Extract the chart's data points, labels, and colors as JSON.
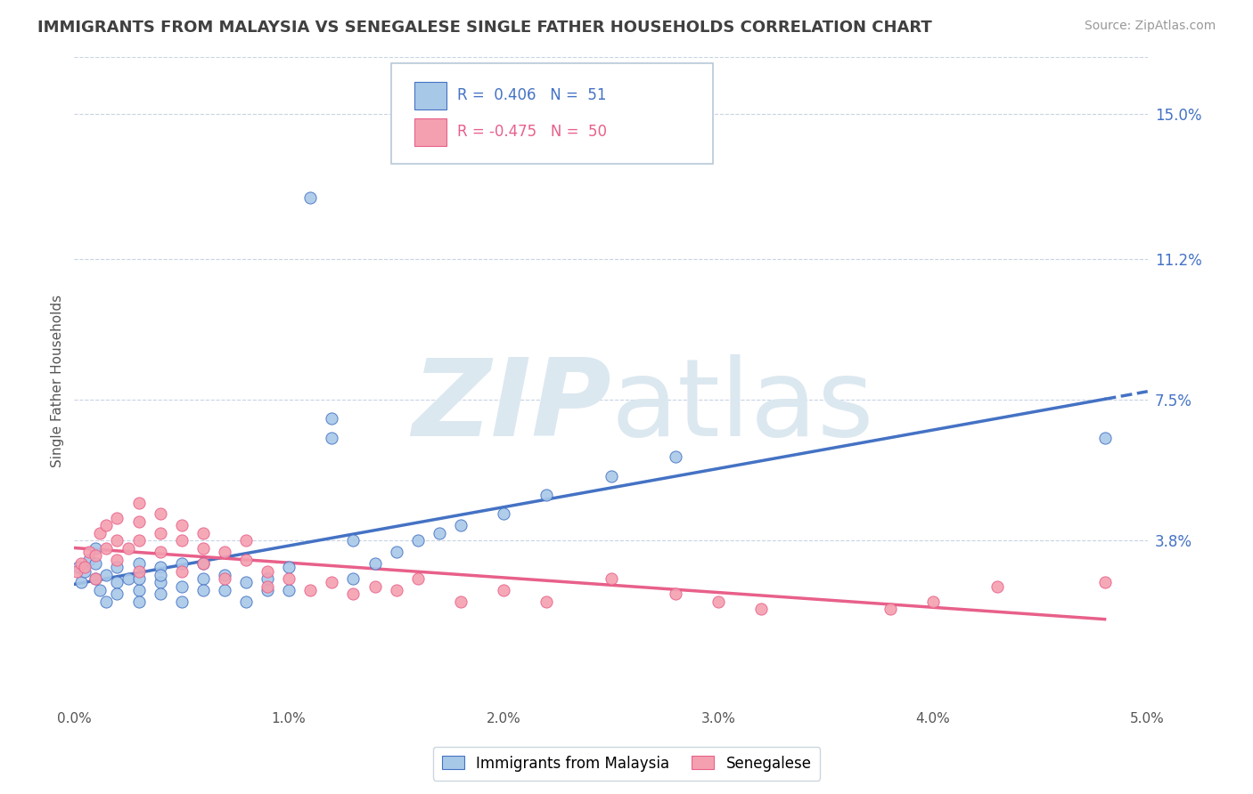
{
  "title": "IMMIGRANTS FROM MALAYSIA VS SENEGALESE SINGLE FATHER HOUSEHOLDS CORRELATION CHART",
  "source": "Source: ZipAtlas.com",
  "ylabel": "Single Father Households",
  "yticks_right": [
    0.038,
    0.075,
    0.112,
    0.15
  ],
  "ytick_labels_right": [
    "3.8%",
    "7.5%",
    "11.2%",
    "15.0%"
  ],
  "xlim": [
    0.0,
    0.05
  ],
  "ylim": [
    -0.005,
    0.165
  ],
  "r_malaysia": 0.406,
  "n_malaysia": 51,
  "r_senegalese": -0.475,
  "n_senegalese": 50,
  "color_malaysia": "#a8c8e8",
  "color_senegalese": "#f4a0b0",
  "color_trendline_malaysia": "#4472c4",
  "color_trendline_senegalese": "#e8608a",
  "color_axis_label": "#4472c4",
  "color_title": "#404040",
  "color_source": "#999999",
  "watermark_color": "#dce8f0",
  "malaysia_scatter_x": [
    0.0002,
    0.0003,
    0.0005,
    0.0007,
    0.001,
    0.001,
    0.001,
    0.0012,
    0.0015,
    0.0015,
    0.002,
    0.002,
    0.002,
    0.0025,
    0.003,
    0.003,
    0.003,
    0.003,
    0.004,
    0.004,
    0.004,
    0.004,
    0.005,
    0.005,
    0.005,
    0.006,
    0.006,
    0.006,
    0.007,
    0.007,
    0.008,
    0.008,
    0.009,
    0.009,
    0.01,
    0.01,
    0.011,
    0.012,
    0.012,
    0.013,
    0.013,
    0.014,
    0.015,
    0.016,
    0.017,
    0.018,
    0.02,
    0.022,
    0.025,
    0.028,
    0.048
  ],
  "malaysia_scatter_y": [
    0.031,
    0.027,
    0.03,
    0.033,
    0.028,
    0.032,
    0.036,
    0.025,
    0.029,
    0.022,
    0.027,
    0.031,
    0.024,
    0.028,
    0.025,
    0.032,
    0.028,
    0.022,
    0.027,
    0.031,
    0.024,
    0.029,
    0.026,
    0.032,
    0.022,
    0.028,
    0.025,
    0.032,
    0.025,
    0.029,
    0.027,
    0.022,
    0.028,
    0.025,
    0.031,
    0.025,
    0.128,
    0.065,
    0.07,
    0.028,
    0.038,
    0.032,
    0.035,
    0.038,
    0.04,
    0.042,
    0.045,
    0.05,
    0.055,
    0.06,
    0.065
  ],
  "senegalese_scatter_x": [
    0.0001,
    0.0003,
    0.0005,
    0.0007,
    0.001,
    0.001,
    0.0012,
    0.0015,
    0.0015,
    0.002,
    0.002,
    0.002,
    0.0025,
    0.003,
    0.003,
    0.003,
    0.003,
    0.004,
    0.004,
    0.004,
    0.005,
    0.005,
    0.005,
    0.006,
    0.006,
    0.006,
    0.007,
    0.007,
    0.008,
    0.008,
    0.009,
    0.009,
    0.01,
    0.011,
    0.012,
    0.013,
    0.014,
    0.015,
    0.016,
    0.018,
    0.02,
    0.022,
    0.025,
    0.028,
    0.03,
    0.032,
    0.038,
    0.04,
    0.043,
    0.048
  ],
  "senegalese_scatter_y": [
    0.03,
    0.032,
    0.031,
    0.035,
    0.028,
    0.034,
    0.04,
    0.036,
    0.042,
    0.033,
    0.038,
    0.044,
    0.036,
    0.03,
    0.038,
    0.043,
    0.048,
    0.035,
    0.04,
    0.045,
    0.038,
    0.042,
    0.03,
    0.036,
    0.04,
    0.032,
    0.028,
    0.035,
    0.033,
    0.038,
    0.03,
    0.026,
    0.028,
    0.025,
    0.027,
    0.024,
    0.026,
    0.025,
    0.028,
    0.022,
    0.025,
    0.022,
    0.028,
    0.024,
    0.022,
    0.02,
    0.02,
    0.022,
    0.026,
    0.027
  ]
}
